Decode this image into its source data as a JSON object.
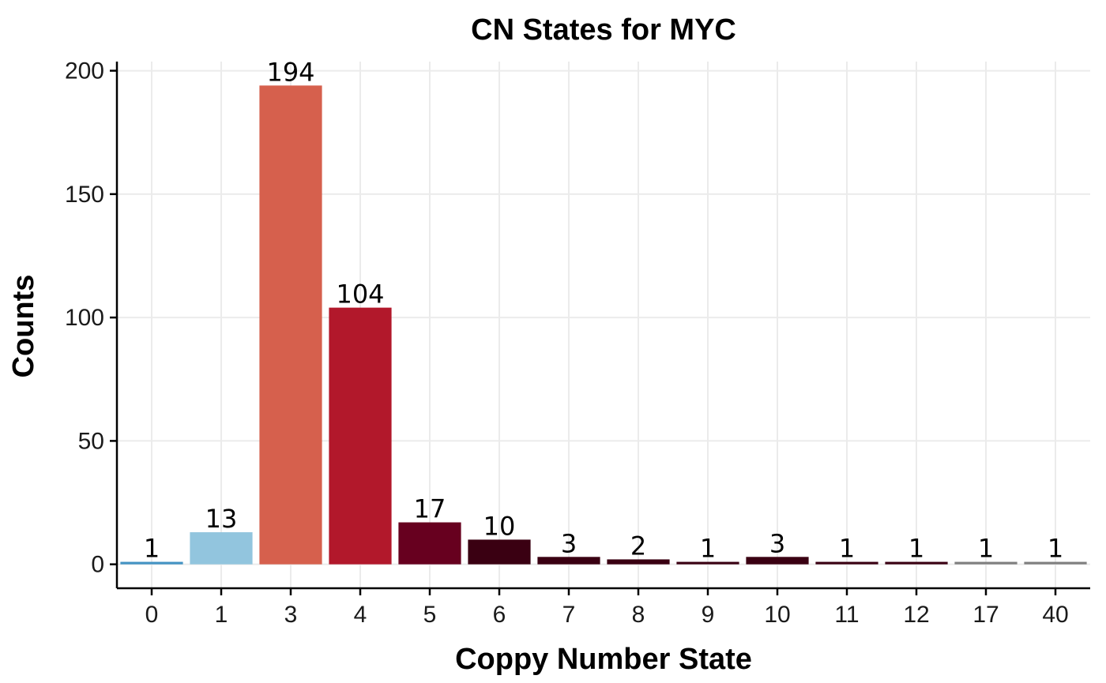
{
  "chart_data": {
    "type": "bar",
    "title": "CN States for MYC",
    "xlabel": "Coppy Number State",
    "ylabel": "Counts",
    "categories": [
      "0",
      "1",
      "3",
      "4",
      "5",
      "6",
      "7",
      "8",
      "9",
      "10",
      "11",
      "12",
      "17",
      "40"
    ],
    "values": [
      1,
      13,
      194,
      104,
      17,
      10,
      3,
      2,
      1,
      3,
      1,
      1,
      1,
      1
    ],
    "data_labels": [
      "1",
      "13",
      "194",
      "104",
      "17",
      "10",
      "3",
      "2",
      "1",
      "3",
      "1",
      "1",
      "1",
      "1"
    ],
    "colors": [
      "#4393c3",
      "#92c5de",
      "#d6604d",
      "#b2182b",
      "#67001f",
      "#3a0012",
      "#3a0012",
      "#3a0012",
      "#3a0012",
      "#3a0012",
      "#3a0012",
      "#3a0012",
      "#7f7f7f",
      "#7f7f7f"
    ],
    "y_ticks": [
      "0",
      "50",
      "100",
      "150",
      "200"
    ],
    "y_tick_values": [
      0,
      50,
      100,
      150,
      200
    ],
    "ylim": [
      -9.7,
      203.7
    ],
    "grid": true,
    "legend": "none"
  }
}
